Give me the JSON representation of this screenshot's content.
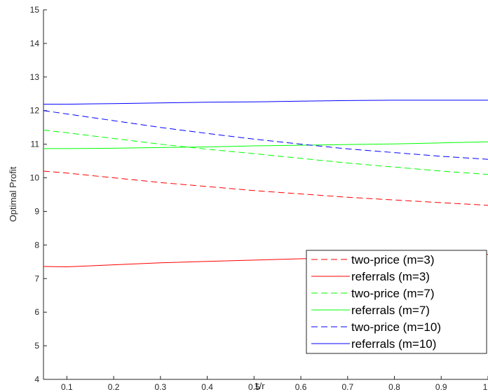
{
  "chart_data": {
    "type": "line",
    "xlabel": "1/r",
    "ylabel": "Optimal Profit",
    "xlim": [
      0.05,
      1.0
    ],
    "ylim": [
      4,
      15
    ],
    "x_ticks": [
      "0.1",
      "0.2",
      "0.3",
      "0.4",
      "0.5",
      "0.6",
      "0.7",
      "0.8",
      "0.9",
      "1"
    ],
    "y_ticks": [
      "4",
      "5",
      "6",
      "7",
      "8",
      "9",
      "10",
      "11",
      "12",
      "13",
      "14",
      "15"
    ],
    "legend_position": "bottom-right",
    "x": [
      0.05,
      0.1,
      0.2,
      0.3,
      0.4,
      0.5,
      0.6,
      0.7,
      0.8,
      0.9,
      1.0
    ],
    "series": [
      {
        "name": "two-price (m=3)",
        "color": "#ff0000",
        "dashed": true,
        "values": [
          10.2,
          10.14,
          10.0,
          9.86,
          9.74,
          9.62,
          9.52,
          9.42,
          9.34,
          9.26,
          9.18
        ]
      },
      {
        "name": "referrals (m=3)",
        "color": "#ff0000",
        "dashed": false,
        "values": [
          7.36,
          7.35,
          7.41,
          7.47,
          7.51,
          7.55,
          7.59,
          7.63,
          7.66,
          7.69,
          7.72
        ]
      },
      {
        "name": "two-price (m=7)",
        "color": "#00ff00",
        "dashed": true,
        "values": [
          11.42,
          11.34,
          11.17,
          11.0,
          10.85,
          10.72,
          10.58,
          10.44,
          10.32,
          10.2,
          10.1
        ]
      },
      {
        "name": "referrals (m=7)",
        "color": "#00ff00",
        "dashed": false,
        "values": [
          10.87,
          10.87,
          10.88,
          10.9,
          10.92,
          10.95,
          10.97,
          10.99,
          11.01,
          11.04,
          11.07
        ]
      },
      {
        "name": "two-price (m=10)",
        "color": "#0000ff",
        "dashed": true,
        "values": [
          12.0,
          11.9,
          11.7,
          11.5,
          11.32,
          11.15,
          11.0,
          10.86,
          10.75,
          10.64,
          10.55
        ]
      },
      {
        "name": "referrals (m=10)",
        "color": "#0000ff",
        "dashed": false,
        "values": [
          12.19,
          12.19,
          12.21,
          12.23,
          12.25,
          12.26,
          12.28,
          12.3,
          12.31,
          12.31,
          12.31
        ]
      }
    ]
  }
}
